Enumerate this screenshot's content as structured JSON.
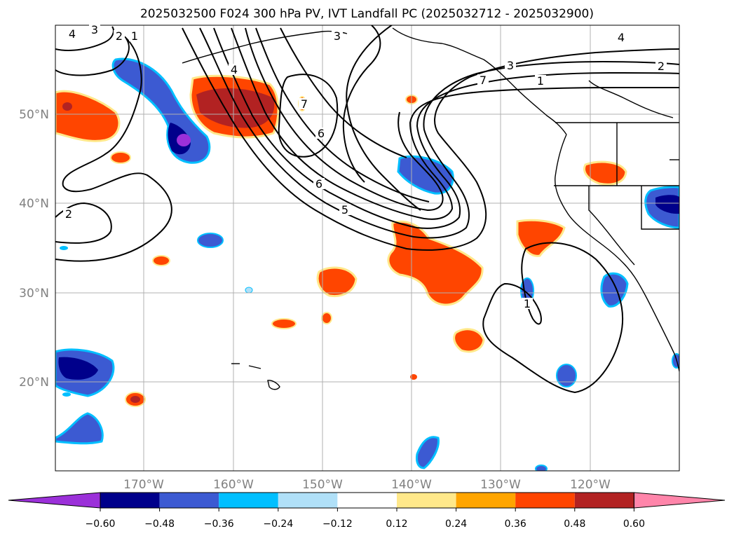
{
  "title": "2025032500 F024 300 hPa PV, IVT Landfall PC (2025032712 - 2025032900)",
  "map": {
    "lon_labels": [
      "170°W",
      "160°W",
      "150°W",
      "140°W",
      "130°W",
      "120°W"
    ],
    "lat_labels": [
      "50°N",
      "40°N",
      "30°N",
      "20°N"
    ],
    "contour_labels": [
      "4",
      "3",
      "2",
      "1",
      "3",
      "4",
      "7",
      "6",
      "5",
      "4",
      "3",
      "2",
      "1",
      "2",
      "6",
      "7",
      "1"
    ],
    "gridlines": true
  },
  "colorbar": {
    "ticks": [
      "−0.60",
      "−0.48",
      "−0.36",
      "−0.24",
      "−0.12",
      "0.12",
      "0.24",
      "0.36",
      "0.48",
      "0.60"
    ],
    "colors": [
      "#9b30d9",
      "#00008b",
      "#3c5ad2",
      "#00bfff",
      "#b0e0f8",
      "#ffffff",
      "#ffe88a",
      "#ffa500",
      "#ff4500",
      "#b22222",
      "#ff85aa"
    ]
  },
  "shading_colors": {
    "purple": "#9b30d9",
    "navy": "#00008b",
    "blue": "#3c5ad2",
    "cyan": "#00bfff",
    "lightblue": "#b0e0f8",
    "yellow": "#ffe88a",
    "orange": "#ffa500",
    "redorange": "#ff4500",
    "darkred": "#b22222"
  }
}
